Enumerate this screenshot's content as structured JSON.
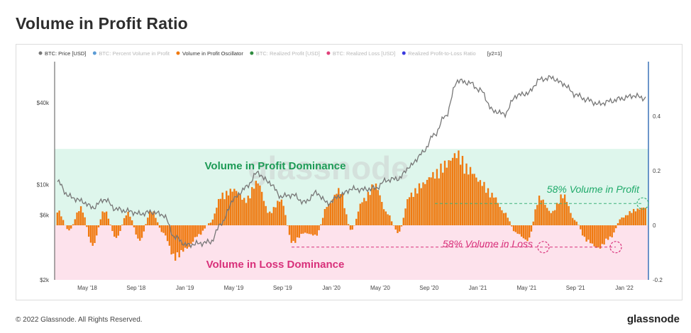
{
  "header": {
    "title": "Volume in Profit Ratio"
  },
  "footer": {
    "copyright": "© 2022 Glassnode. All Rights Reserved.",
    "brand": "glassnode"
  },
  "chart_data": {
    "type": "bar",
    "watermark": "glassnode",
    "legend": {
      "placement": "top",
      "items": [
        {
          "label": "BTC: Price [USD]",
          "color": "#777777",
          "active": true
        },
        {
          "label": "BTC: Percent Volume in Profit",
          "color": "#5b9bd5",
          "active": false
        },
        {
          "label": "Volume in Profit Oscillator",
          "color": "#f07a10",
          "active": true
        },
        {
          "label": "BTC: Realized Profit [USD]",
          "color": "#2e8b3e",
          "active": false
        },
        {
          "label": "BTC: Realized Loss [USD]",
          "color": "#e0407a",
          "active": false
        },
        {
          "label": "Realized Profit-to-Loss Ratio",
          "color": "#3a3adf",
          "active": false
        }
      ],
      "extra": "[y2=1]"
    },
    "x_ticks": [
      "May '18",
      "Sep '18",
      "Jan '19",
      "May '19",
      "Sep '19",
      "Jan '20",
      "May '20",
      "Sep '20",
      "Jan '21",
      "May '21",
      "Sep '21",
      "Jan '22"
    ],
    "y_left": {
      "scale": "log",
      "ticks": [
        "$40k",
        "$10k",
        "$6k",
        "$2k"
      ],
      "tick_values": [
        40000,
        10000,
        6000,
        2000
      ]
    },
    "y_right": {
      "ticks": [
        "0.4",
        "0.2",
        "0",
        "-0.2"
      ],
      "tick_values": [
        0.4,
        0.2,
        0,
        -0.2
      ],
      "range": [
        -0.2,
        0.6
      ]
    },
    "zones": {
      "profit": {
        "label": "Volume in Profit Dominance",
        "color": "#def6ec",
        "from": 0,
        "to": 0.28
      },
      "loss": {
        "label": "Volume in Loss Dominance",
        "color": "#fde2ec",
        "from": -0.2,
        "to": 0
      }
    },
    "annotations": [
      {
        "text": "58% Volume in Profit",
        "color": "#1faa6a",
        "level": 0.08
      },
      {
        "text": "58% Volume in Loss",
        "color": "#d8307a",
        "level": -0.08
      }
    ],
    "series": [
      {
        "name": "BTC: Price [USD]",
        "type": "line",
        "color": "#777777",
        "x": [
          0,
          0.02,
          0.04,
          0.06,
          0.08,
          0.1,
          0.12,
          0.14,
          0.16,
          0.18,
          0.2,
          0.22,
          0.24,
          0.26,
          0.28,
          0.3,
          0.32,
          0.34,
          0.36,
          0.38,
          0.4,
          0.42,
          0.44,
          0.46,
          0.48,
          0.5,
          0.52,
          0.54,
          0.56,
          0.58,
          0.6,
          0.62,
          0.64,
          0.66,
          0.68,
          0.7,
          0.72,
          0.74,
          0.76,
          0.78,
          0.8,
          0.82,
          0.84,
          0.86,
          0.88,
          0.9,
          0.92,
          0.94,
          0.96,
          0.98,
          1.0
        ],
        "y": [
          10500,
          8200,
          7600,
          6800,
          7800,
          6600,
          6400,
          6100,
          6300,
          6000,
          4100,
          3600,
          3700,
          3800,
          5300,
          7900,
          9500,
          12200,
          10400,
          8200,
          8400,
          7400,
          8700,
          7300,
          8300,
          9300,
          9200,
          9400,
          10800,
          11100,
          13700,
          17000,
          23000,
          32000,
          58000,
          56000,
          49000,
          35000,
          33000,
          45000,
          47000,
          59000,
          61000,
          55000,
          46000,
          42000,
          39000,
          41000,
          43000,
          45000,
          43000
        ]
      },
      {
        "name": "Volume in Profit Oscillator",
        "type": "bar",
        "color": "#f07a10",
        "x": [
          0,
          0.02,
          0.04,
          0.06,
          0.08,
          0.1,
          0.12,
          0.14,
          0.16,
          0.18,
          0.2,
          0.22,
          0.24,
          0.26,
          0.28,
          0.3,
          0.32,
          0.34,
          0.36,
          0.38,
          0.4,
          0.42,
          0.44,
          0.46,
          0.48,
          0.5,
          0.52,
          0.54,
          0.56,
          0.58,
          0.6,
          0.62,
          0.64,
          0.66,
          0.68,
          0.7,
          0.72,
          0.74,
          0.76,
          0.78,
          0.8,
          0.82,
          0.84,
          0.86,
          0.88,
          0.9,
          0.92,
          0.94,
          0.96,
          0.98,
          1.0
        ],
        "y": [
          0.06,
          -0.02,
          0.07,
          -0.08,
          0.06,
          -0.05,
          0.05,
          -0.06,
          0.06,
          -0.03,
          -0.13,
          -0.09,
          -0.04,
          0.01,
          0.12,
          0.14,
          0.1,
          0.17,
          0.05,
          0.1,
          -0.07,
          -0.03,
          -0.04,
          0.08,
          0.14,
          -0.02,
          0.1,
          0.16,
          0.05,
          -0.03,
          0.12,
          0.16,
          0.2,
          0.24,
          0.28,
          0.22,
          0.17,
          0.12,
          0.05,
          -0.03,
          -0.06,
          0.11,
          0.05,
          0.12,
          0.02,
          -0.06,
          -0.09,
          -0.05,
          0.03,
          0.06,
          0.07
        ]
      }
    ]
  }
}
